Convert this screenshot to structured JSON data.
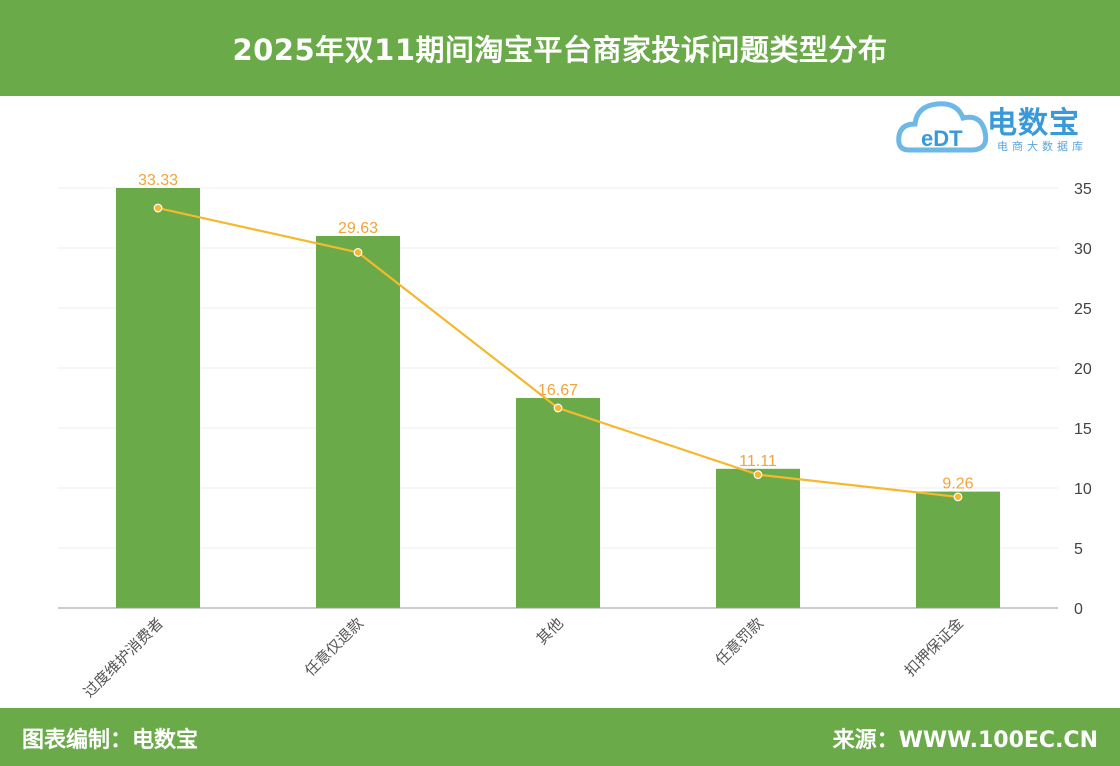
{
  "title": "2025年双11期间淘宝平台商家投诉问题类型分布",
  "logo": {
    "brand": "电数宝",
    "tagline": "电商大数据库",
    "mark_text": "eDT"
  },
  "footer": {
    "left": "图表编制：电数宝",
    "right": "来源：WWW.100EC.CN"
  },
  "colors": {
    "header_bg": "#6aaa49",
    "bar": "#6aaa49",
    "line": "#f5b82e",
    "data_label": "#f0a43a",
    "logo_blue": "#3a9ad9"
  },
  "chart_data": {
    "type": "bar",
    "categories": [
      "过度维护消费者",
      "任意仅退款",
      "其他",
      "任意罚款",
      "扣押保证金"
    ],
    "series": [
      {
        "type": "bar",
        "values": [
          35.0,
          31.0,
          17.5,
          11.6,
          9.7
        ]
      },
      {
        "type": "line",
        "values": [
          33.33,
          29.63,
          16.67,
          11.11,
          9.26
        ]
      }
    ],
    "data_labels": [
      "33.33",
      "29.63",
      "16.67",
      "11.11",
      "9.26"
    ],
    "y_axis": {
      "position": "right",
      "min": 0,
      "max": 35,
      "ticks": [
        0,
        5,
        10,
        15,
        20,
        25,
        30,
        35
      ]
    },
    "grid": true,
    "legend": "none"
  }
}
